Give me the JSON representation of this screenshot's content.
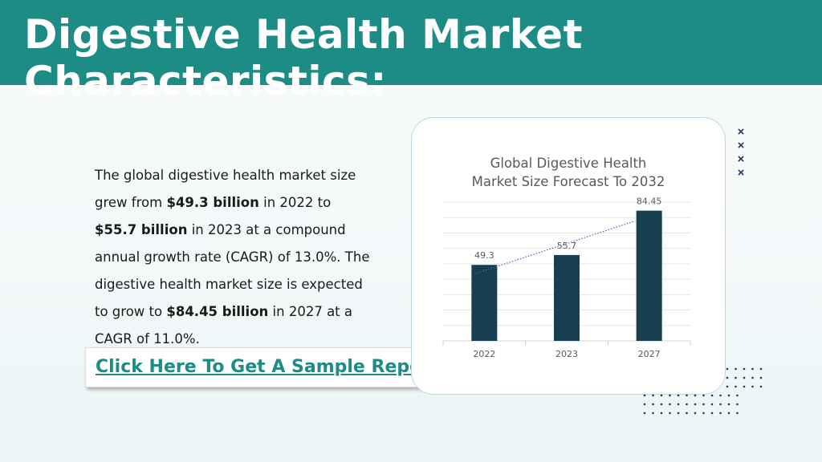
{
  "header": {
    "title": "Digestive Health Market Characteristics:"
  },
  "body": {
    "seg1": "The global digestive health market size grew from ",
    "seg2": "$49.3 billion",
    "seg3": " in 2022 to ",
    "seg4": "$55.7 billion",
    "seg5": " in 2023 at a compound annual growth rate (CAGR) of 13.0%. The digestive health market size is expected to grow to ",
    "seg6": "$84.45 billion",
    "seg7": " in 2027 at a CAGR of 11.0%."
  },
  "cta": {
    "label": "Click Here To Get A Sample Report"
  },
  "decor": {
    "x_mark": "×"
  },
  "colors": {
    "header_bg": "#1c8c84",
    "bar": "#163f50",
    "trendline": "#3a6db5",
    "link": "#1c8c84"
  },
  "chart_data": {
    "type": "bar",
    "title_lines": [
      "Global Digestive Health",
      "Market Size Forecast To 2032"
    ],
    "categories": [
      "2022",
      "2023",
      "2027"
    ],
    "values": [
      49.3,
      55.7,
      84.45
    ],
    "data_labels": [
      "49.3",
      "55.7",
      "84.45"
    ],
    "ylim": [
      0,
      90
    ],
    "grid": true,
    "trendline": "linear, dotted",
    "xlabel": "",
    "ylabel": ""
  }
}
